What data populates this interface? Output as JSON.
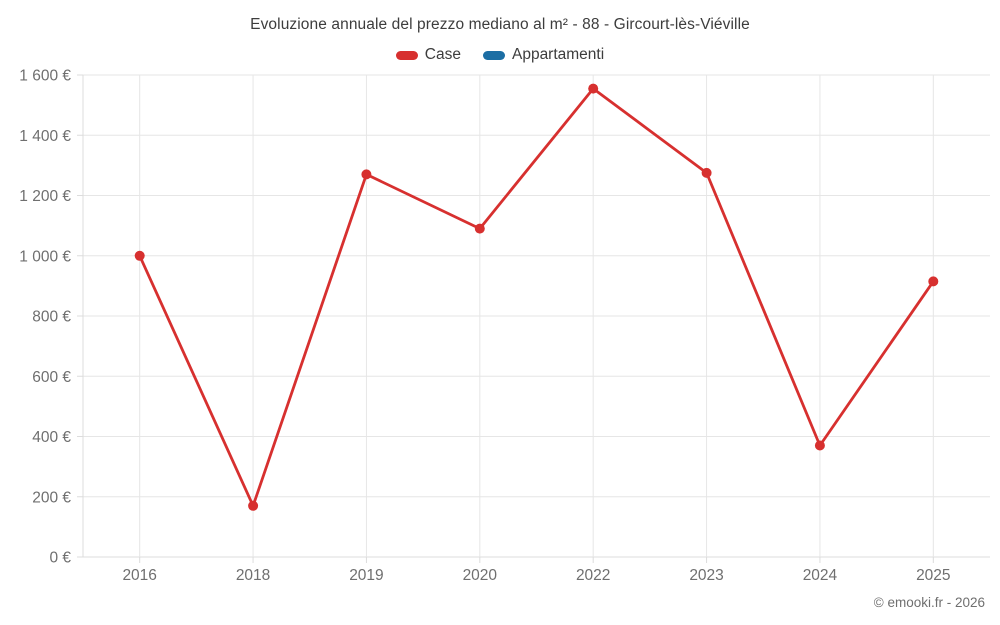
{
  "chart_data": {
    "type": "line",
    "title": "Evoluzione annuale del prezzo mediano al m² - 88 - Gircourt-lès-Viéville",
    "categories": [
      "2016",
      "2018",
      "2019",
      "2020",
      "2022",
      "2023",
      "2024",
      "2025"
    ],
    "series": [
      {
        "name": "Case",
        "color": "#d7302f",
        "values": [
          1000,
          170,
          1270,
          1090,
          1555,
          1275,
          370,
          915
        ]
      },
      {
        "name": "Appartamenti",
        "color": "#1c6ea4",
        "values": []
      }
    ],
    "xlabel": "",
    "ylabel": "",
    "ylim": [
      0,
      1600
    ],
    "ytick_step": 200,
    "ytick_suffix": " €",
    "grid": true,
    "legend_position": "top",
    "marker": "circle"
  },
  "footer": {
    "credit": "© emooki.fr - 2026"
  },
  "colors": {
    "background": "#ffffff",
    "title_text": "#3d3d3d",
    "axis_label_text": "#6f6f6f",
    "gridline": "#e6e6e6",
    "axis_line": "#dcdcdc",
    "series_case": "#d7302f",
    "series_appartamenti": "#1c6ea4"
  }
}
